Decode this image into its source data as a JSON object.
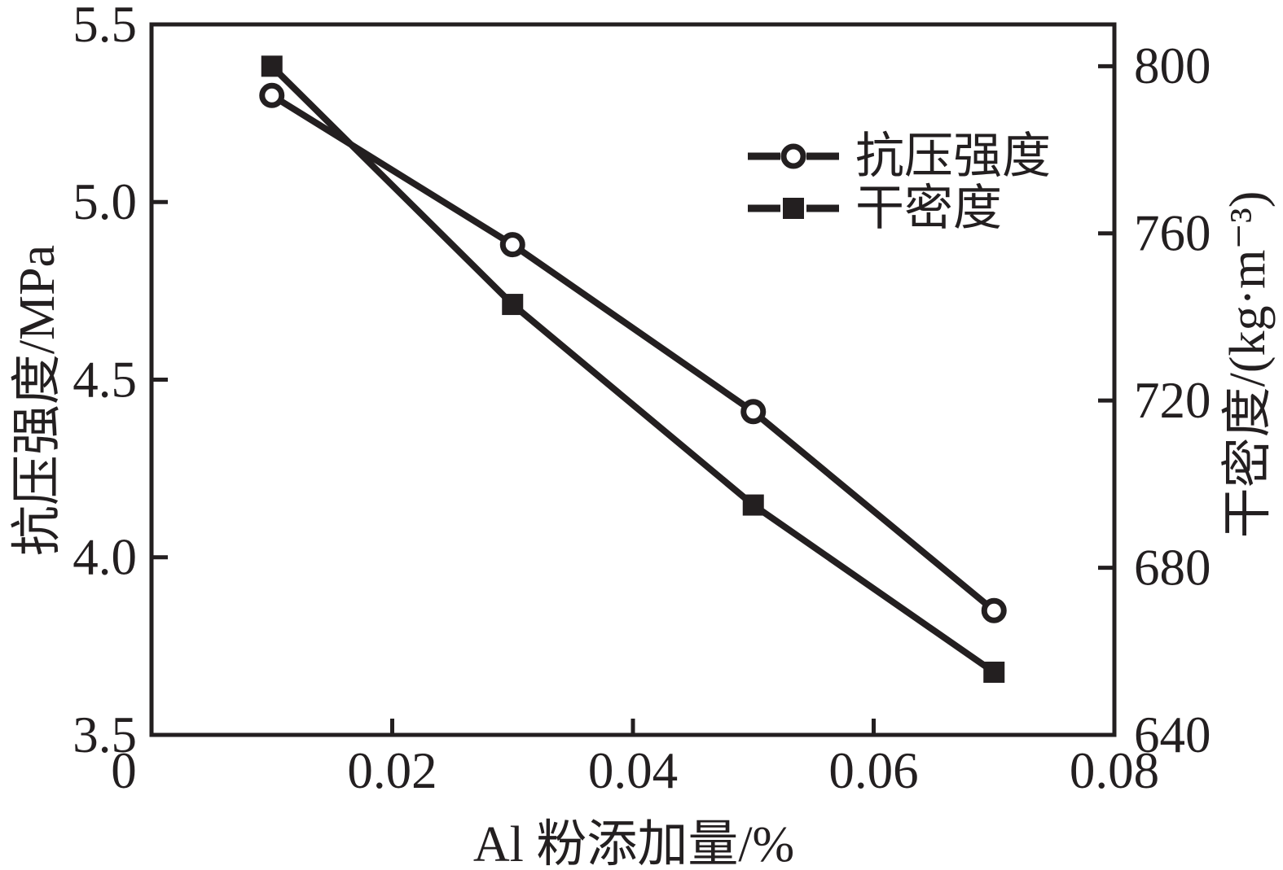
{
  "figure": {
    "background": "#ffffff",
    "ink_color": "#231f20"
  },
  "chart_data": {
    "type": "line",
    "title": "",
    "grid": false,
    "legend_position": "upper-right-inside",
    "x": [
      0.01,
      0.03,
      0.05,
      0.07
    ],
    "series": [
      {
        "id": "compressive-strength",
        "name": "抗压强度",
        "axis": "left",
        "marker": "circle-open",
        "values": [
          5.3,
          4.88,
          4.41,
          3.85
        ]
      },
      {
        "id": "dry-density",
        "name": "干密度",
        "axis": "right",
        "marker": "square-filled",
        "values": [
          800,
          743,
          695,
          655
        ]
      }
    ],
    "x_axis": {
      "label": "Al 粉添加量/%",
      "min": 0,
      "max": 0.08,
      "ticks": [
        {
          "value": 0,
          "label": "0"
        },
        {
          "value": 0.02,
          "label": "0.02"
        },
        {
          "value": 0.04,
          "label": "0.04"
        },
        {
          "value": 0.06,
          "label": "0.06"
        },
        {
          "value": 0.08,
          "label": "0.08"
        }
      ]
    },
    "left_axis": {
      "label": "抗压强度/MPa",
      "min": 3.5,
      "max": 5.5,
      "ticks": [
        {
          "value": 3.5,
          "label": "3.5"
        },
        {
          "value": 4.0,
          "label": "4.0"
        },
        {
          "value": 4.5,
          "label": "4.5"
        },
        {
          "value": 5.0,
          "label": "5.0"
        },
        {
          "value": 5.5,
          "label": "5.5"
        }
      ]
    },
    "right_axis": {
      "label": "干密度/(kg·m⁻³)",
      "min": 640,
      "max": 810,
      "ticks": [
        {
          "value": 640,
          "label": "640"
        },
        {
          "value": 680,
          "label": "680"
        },
        {
          "value": 720,
          "label": "720"
        },
        {
          "value": 760,
          "label": "760"
        },
        {
          "value": 800,
          "label": "800"
        }
      ]
    },
    "legend": [
      {
        "label": "抗压强度",
        "marker": "circle-open"
      },
      {
        "label": "干密度",
        "marker": "square-filled"
      }
    ]
  }
}
